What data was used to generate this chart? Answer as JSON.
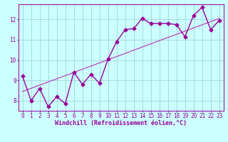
{
  "x_data": [
    0,
    1,
    2,
    3,
    4,
    5,
    6,
    7,
    8,
    9,
    10,
    11,
    12,
    13,
    14,
    15,
    16,
    17,
    18,
    19,
    20,
    21,
    22,
    23
  ],
  "y_data": [
    9.2,
    8.0,
    8.6,
    7.7,
    8.2,
    7.85,
    9.4,
    8.8,
    9.3,
    8.85,
    10.05,
    10.9,
    11.5,
    11.55,
    12.05,
    11.8,
    11.8,
    11.8,
    11.75,
    11.15,
    12.2,
    12.6,
    11.5,
    11.95
  ],
  "trend_x": [
    0,
    23
  ],
  "trend_y": [
    8.45,
    12.05
  ],
  "line_color": "#990099",
  "trend_color": "#bb44bb",
  "bg_color": "#ccffff",
  "grid_color": "#99cccc",
  "xlabel": "Windchill (Refroidissement éolien,°C)",
  "xlim": [
    -0.5,
    23.5
  ],
  "ylim": [
    7.5,
    12.75
  ],
  "yticks": [
    8,
    9,
    10,
    11,
    12
  ],
  "xticks": [
    0,
    1,
    2,
    3,
    4,
    5,
    6,
    7,
    8,
    9,
    10,
    11,
    12,
    13,
    14,
    15,
    16,
    17,
    18,
    19,
    20,
    21,
    22,
    23
  ],
  "marker": "D",
  "markersize": 2.5,
  "linewidth": 1.0,
  "xlabel_fontsize": 6.0,
  "tick_fontsize": 5.5
}
